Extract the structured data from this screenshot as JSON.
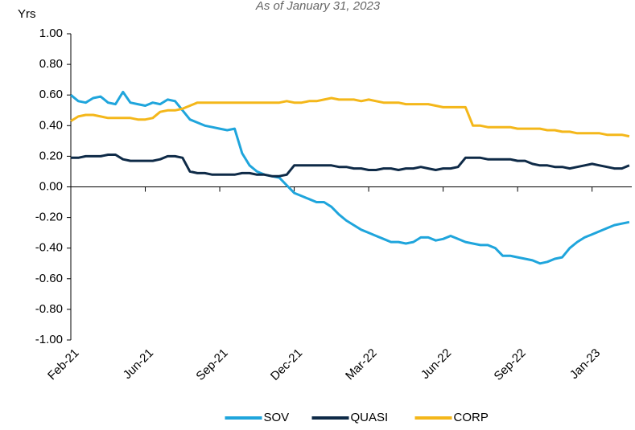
{
  "chart_data": {
    "type": "line",
    "subtitle": "As of January 31, 2023",
    "y_label": "Yrs",
    "x": [
      0,
      3,
      6,
      9,
      12,
      15,
      18,
      21,
      24,
      27,
      30,
      33,
      36,
      39,
      42,
      45,
      48,
      51,
      54,
      57,
      60,
      63,
      66,
      69,
      72,
      75,
      78,
      81,
      84,
      87,
      90,
      93,
      96,
      99,
      102,
      105,
      108,
      111,
      114,
      117,
      120,
      123,
      126,
      129,
      132,
      135,
      138,
      141,
      144,
      147,
      150,
      153,
      156,
      159,
      162,
      165,
      168,
      171,
      174,
      177,
      180,
      183,
      186,
      189,
      192,
      195,
      198,
      201,
      204,
      207,
      210,
      213,
      216,
      219,
      222,
      225
    ],
    "xlim": [
      0,
      226
    ],
    "xticks": [
      {
        "value": 0,
        "label": "Feb-21"
      },
      {
        "value": 30,
        "label": "Jun-21"
      },
      {
        "value": 60,
        "label": "Sep-21"
      },
      {
        "value": 90,
        "label": "Dec-21"
      },
      {
        "value": 120,
        "label": "Mar-22"
      },
      {
        "value": 150,
        "label": "Jun-22"
      },
      {
        "value": 180,
        "label": "Sep-22"
      },
      {
        "value": 210,
        "label": "Jan-23"
      }
    ],
    "ylim": [
      -1,
      1
    ],
    "yticks": [
      {
        "value": 1,
        "label": "1.00"
      },
      {
        "value": 0.8,
        "label": "0.80"
      },
      {
        "value": 0.6,
        "label": "0.60"
      },
      {
        "value": 0.4,
        "label": "0.40"
      },
      {
        "value": 0.2,
        "label": "0.20"
      },
      {
        "value": 0,
        "label": "0.00"
      },
      {
        "value": -0.2,
        "label": "-0.20"
      },
      {
        "value": -0.4,
        "label": "-0.40"
      },
      {
        "value": -0.6,
        "label": "-0.60"
      },
      {
        "value": -0.8,
        "label": "-0.80"
      },
      {
        "value": -1,
        "label": "-1.00"
      }
    ],
    "grid": false,
    "legend": "bottom",
    "series": [
      {
        "name": "SOV",
        "color": "#1fa5dc",
        "values": [
          0.6,
          0.56,
          0.55,
          0.58,
          0.59,
          0.55,
          0.54,
          0.62,
          0.55,
          0.54,
          0.53,
          0.55,
          0.54,
          0.57,
          0.56,
          0.5,
          0.44,
          0.42,
          0.4,
          0.39,
          0.38,
          0.37,
          0.38,
          0.22,
          0.14,
          0.1,
          0.08,
          0.07,
          0.06,
          0.01,
          -0.04,
          -0.06,
          -0.08,
          -0.1,
          -0.1,
          -0.13,
          -0.18,
          -0.22,
          -0.25,
          -0.28,
          -0.3,
          -0.32,
          -0.34,
          -0.36,
          -0.36,
          -0.37,
          -0.36,
          -0.33,
          -0.33,
          -0.35,
          -0.34,
          -0.32,
          -0.34,
          -0.36,
          -0.37,
          -0.38,
          -0.38,
          -0.4,
          -0.45,
          -0.45,
          -0.46,
          -0.47,
          -0.48,
          -0.5,
          -0.49,
          -0.47,
          -0.46,
          -0.4,
          -0.36,
          -0.33,
          -0.31,
          -0.29,
          -0.27,
          -0.25,
          -0.24,
          -0.23
        ]
      },
      {
        "name": "QUASI",
        "color": "#0e2a47",
        "values": [
          0.19,
          0.19,
          0.2,
          0.2,
          0.2,
          0.21,
          0.21,
          0.18,
          0.17,
          0.17,
          0.17,
          0.17,
          0.18,
          0.2,
          0.2,
          0.19,
          0.1,
          0.09,
          0.09,
          0.08,
          0.08,
          0.08,
          0.08,
          0.09,
          0.09,
          0.08,
          0.08,
          0.07,
          0.07,
          0.08,
          0.14,
          0.14,
          0.14,
          0.14,
          0.14,
          0.14,
          0.13,
          0.13,
          0.12,
          0.12,
          0.11,
          0.11,
          0.12,
          0.12,
          0.11,
          0.12,
          0.12,
          0.13,
          0.12,
          0.11,
          0.12,
          0.12,
          0.13,
          0.19,
          0.19,
          0.19,
          0.18,
          0.18,
          0.18,
          0.18,
          0.17,
          0.17,
          0.15,
          0.14,
          0.14,
          0.13,
          0.13,
          0.12,
          0.13,
          0.14,
          0.15,
          0.14,
          0.13,
          0.12,
          0.12,
          0.14
        ]
      },
      {
        "name": "CORP",
        "color": "#f4b71a",
        "values": [
          0.43,
          0.46,
          0.47,
          0.47,
          0.46,
          0.45,
          0.45,
          0.45,
          0.45,
          0.44,
          0.44,
          0.45,
          0.49,
          0.5,
          0.5,
          0.51,
          0.53,
          0.55,
          0.55,
          0.55,
          0.55,
          0.55,
          0.55,
          0.55,
          0.55,
          0.55,
          0.55,
          0.55,
          0.55,
          0.56,
          0.55,
          0.55,
          0.56,
          0.56,
          0.57,
          0.58,
          0.57,
          0.57,
          0.57,
          0.56,
          0.57,
          0.56,
          0.55,
          0.55,
          0.55,
          0.54,
          0.54,
          0.54,
          0.54,
          0.53,
          0.52,
          0.52,
          0.52,
          0.52,
          0.4,
          0.4,
          0.39,
          0.39,
          0.39,
          0.39,
          0.38,
          0.38,
          0.38,
          0.38,
          0.37,
          0.37,
          0.36,
          0.36,
          0.35,
          0.35,
          0.35,
          0.35,
          0.34,
          0.34,
          0.34,
          0.33
        ]
      }
    ]
  }
}
